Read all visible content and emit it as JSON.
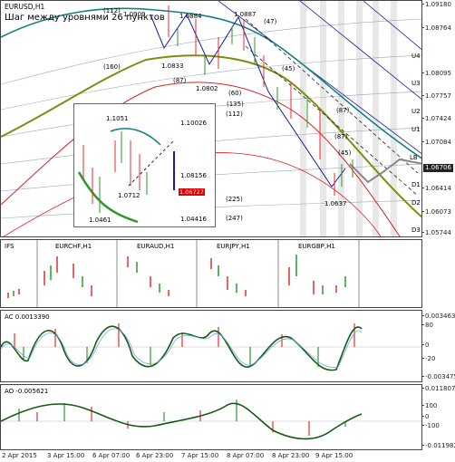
{
  "main": {
    "symbol": "EURUSD,H1",
    "caption": "Шаг между уровнями 26 пунктов",
    "price_ticks": [
      "1.09180",
      "1.08764",
      "1.08095",
      "1.07757",
      "1.07424",
      "1.07084",
      "1.06706",
      "1.06414",
      "1.06073",
      "1.05744"
    ],
    "current_price": "1.06706",
    "level_labels": [
      "U4",
      "U3",
      "U2",
      "U1",
      "LB",
      "D1",
      "D2",
      "D3"
    ],
    "peak_labels": [
      "1.0884",
      "1.0887",
      "1.0909",
      "1.0833",
      "1.0802",
      "1.0637"
    ],
    "ma_labels": [
      "(112)",
      "(160)",
      "(87)",
      "(47)",
      "(87)",
      "(45)",
      "(60)",
      "(112)",
      "(135)",
      "(87)",
      "(45)",
      "(225)",
      "(247)"
    ]
  },
  "inset": {
    "price_ticks": [
      "1.10026",
      "1.08156",
      "1.06727",
      "1.04416"
    ],
    "current_price": "1.06727",
    "peak_labels": [
      "1.1051",
      "1.0712",
      "1.0461"
    ]
  },
  "ifs": {
    "title": "IFS",
    "symbols": [
      "EURCHF,H1",
      "EURAUD,H1",
      "EURJPY,H1",
      "EURGBP,H1"
    ]
  },
  "ac": {
    "title": "AC 0.0013390",
    "ticks": [
      "0.003463",
      "80",
      "0",
      "-20",
      "-0.003475"
    ]
  },
  "ao": {
    "title": "AO -0.005621",
    "ticks": [
      "0.011807",
      "100",
      "0",
      "-100",
      "-0.011982"
    ]
  },
  "time_axis": [
    "2 Apr 2015",
    "3 Apr 15:00",
    "6 Apr 07:00",
    "6 Apr 23:00",
    "7 Apr 15:00",
    "8 Apr 07:00",
    "8 Apr 23:00",
    "9 Apr 15:00"
  ],
  "colors": {
    "bull": "#e03030",
    "bear": "#2a9a2a",
    "olive": "#7f8c10",
    "navy": "#1a1aa0",
    "teal": "#138080",
    "red": "#e02020",
    "grey": "#777777"
  }
}
